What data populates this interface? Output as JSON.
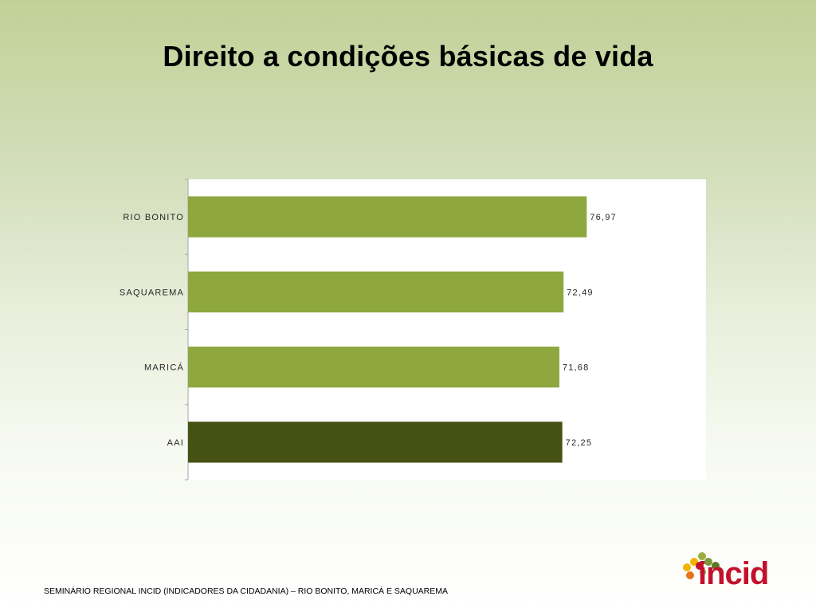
{
  "slide": {
    "title": "Direito a condições básicas de vida",
    "footer": "SEMINÁRIO REGIONAL INCID (INDICADORES DA CIDADANIA) – RIO BONITO, MARICÁ E SAQUAREMA",
    "logo_text": "incid"
  },
  "colors": {
    "bar_municipality": "#8ea83f",
    "bar_aai": "#465214",
    "axis": "#a6a6a6",
    "logo_red": "#c4102c",
    "logo_dot_green": "#7a9a3a",
    "logo_dot_olive": "#9aae3c",
    "logo_dot_yellow": "#f0b400",
    "logo_dot_orange": "#e8731b",
    "logo_dot_red": "#c4102c"
  },
  "chart_data": {
    "type": "bar",
    "orientation": "horizontal",
    "categories": [
      "RIO BONITO",
      "SAQUAREMA",
      "MARICÁ",
      "AAI"
    ],
    "values": [
      76.97,
      72.49,
      71.68,
      72.25
    ],
    "value_labels": [
      "76,97",
      "72,49",
      "71,68",
      "72,25"
    ],
    "xlim": [
      0,
      100
    ],
    "grid": false,
    "legend": "none"
  }
}
